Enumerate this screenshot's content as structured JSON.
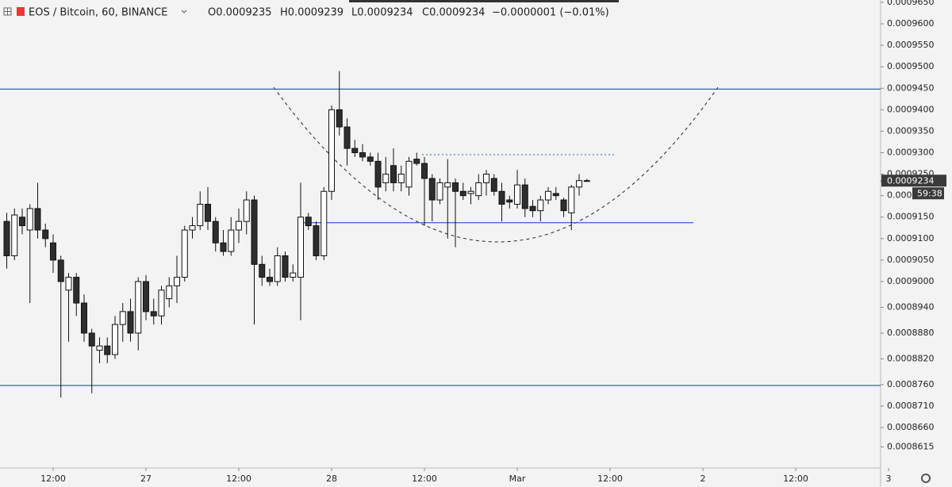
{
  "chart_data": {
    "type": "candlestick",
    "header": {
      "symbol": "EOS / Bitcoin, 60, BINANCE",
      "ohlc": [
        "O0.0009235",
        "H0.0009239",
        "L0.0009234",
        "C0.0009234"
      ],
      "change": "−0.0000001 (−0.01%)"
    },
    "open": [
      0.000914,
      0.000906,
      0.000915,
      0.000912,
      0.000917,
      0.000912,
      0.000909,
      0.000905,
      0.000898,
      0.000901,
      0.000895,
      0.000888,
      0.000884,
      0.000885,
      0.000883,
      0.00089,
      0.000893,
      0.000888,
      0.0009,
      0.000893,
      0.000892,
      0.000896,
      0.000899,
      0.000901,
      0.000912,
      0.000913,
      0.000918,
      0.000914,
      0.000909,
      0.000907,
      0.000912,
      0.000914,
      0.000919,
      0.000904,
      0.000901,
      0.0009,
      0.000906,
      0.000901,
      0.000901,
      0.000915,
      0.000913,
      0.000906,
      0.000921,
      0.00094,
      0.000936,
      0.000931,
      0.00093,
      0.000929,
      0.000928,
      0.000923,
      0.000927,
      0.000923,
      0.000922,
      0.0009285,
      0.0009275,
      0.000924,
      0.000919,
      0.000922,
      0.000923,
      0.000921,
      0.0009205,
      0.00092,
      0.000923,
      0.000924,
      0.000921,
      0.000919,
      0.000918,
      0.0009225,
      0.0009175,
      0.0009165,
      0.000919,
      0.0009205,
      0.000919,
      0.000916,
      0.000922,
      0.0009235
    ],
    "high": [
      0.000916,
      0.000917,
      0.000917,
      0.000918,
      0.000923,
      0.0009135,
      0.000911,
      0.000906,
      0.000902,
      0.000902,
      0.000897,
      0.000889,
      0.000887,
      0.000887,
      0.000892,
      0.000895,
      0.000896,
      0.000901,
      0.0009015,
      0.000896,
      0.000899,
      0.000901,
      0.000906,
      0.000913,
      0.000915,
      0.000921,
      0.000922,
      0.000915,
      0.000912,
      0.000915,
      0.000917,
      0.000921,
      0.00092,
      0.000906,
      0.000903,
      0.000908,
      0.000907,
      0.000904,
      0.000923,
      0.000916,
      0.000914,
      0.000922,
      0.000941,
      0.000949,
      0.000938,
      0.000933,
      0.000932,
      0.00093,
      0.00093,
      0.000929,
      0.000931,
      0.000927,
      0.000929,
      0.00093,
      0.000929,
      0.000925,
      0.000924,
      0.0009285,
      0.000924,
      0.000923,
      0.000922,
      0.000925,
      0.000926,
      0.000925,
      0.000923,
      0.00092,
      0.000926,
      0.000924,
      0.000919,
      0.00092,
      0.000922,
      0.000922,
      0.0009195,
      0.0009225,
      0.000925,
      0.0009239
    ],
    "low": [
      0.000903,
      0.000905,
      0.000911,
      0.000895,
      0.00091,
      0.000908,
      0.000902,
      0.000873,
      0.000886,
      0.000892,
      0.000886,
      0.000874,
      0.000881,
      0.000881,
      0.000882,
      0.000886,
      0.000886,
      0.000884,
      0.000891,
      0.00089,
      0.00089,
      0.000894,
      0.000895,
      0.0009,
      0.00091,
      0.000912,
      0.000912,
      0.000907,
      0.000906,
      0.000906,
      0.000909,
      0.000911,
      0.00089,
      0.000899,
      0.000899,
      0.000899,
      0.0009,
      0.0009,
      0.000891,
      0.000912,
      0.000905,
      0.000905,
      0.000919,
      0.000934,
      0.000927,
      0.000929,
      0.000928,
      0.000927,
      0.000919,
      0.000921,
      0.000921,
      0.000921,
      0.00092,
      0.000927,
      0.000913,
      0.000914,
      0.000918,
      0.00091,
      0.000908,
      0.000919,
      0.000918,
      0.000919,
      0.00092,
      0.00092,
      0.000914,
      0.000917,
      0.000917,
      0.000915,
      0.000915,
      0.000914,
      0.000918,
      0.000919,
      0.000915,
      0.000912,
      0.00092,
      0.0009234
    ],
    "close": [
      0.000906,
      0.0009155,
      0.000913,
      0.000917,
      0.000912,
      0.00091,
      0.000905,
      0.0009,
      0.000901,
      0.000895,
      0.000888,
      0.000885,
      0.000885,
      0.000883,
      0.00089,
      0.000893,
      0.000888,
      0.0009,
      0.000893,
      0.000892,
      0.000898,
      0.000899,
      0.000901,
      0.000912,
      0.000913,
      0.000918,
      0.000914,
      0.000909,
      0.000907,
      0.000912,
      0.000914,
      0.000919,
      0.000904,
      0.000901,
      0.0009,
      0.000906,
      0.000901,
      0.000902,
      0.000915,
      0.000913,
      0.000906,
      0.000921,
      0.00094,
      0.000936,
      0.000931,
      0.00093,
      0.000929,
      0.000928,
      0.000922,
      0.000925,
      0.000923,
      0.000925,
      0.000928,
      0.0009275,
      0.000924,
      0.000919,
      0.000923,
      0.000923,
      0.000921,
      0.00092,
      0.000921,
      0.000923,
      0.000925,
      0.000921,
      0.000918,
      0.0009185,
      0.0009225,
      0.000917,
      0.0009165,
      0.000919,
      0.000921,
      0.00092,
      0.0009165,
      0.000922,
      0.0009235,
      0.0009234
    ],
    "hlines": [
      0.0009448,
      0.0009137,
      0.0008758
    ],
    "xlim": [
      -0.87,
      112.97
    ],
    "xticks": [
      {
        "value": 6,
        "label": "12:00"
      },
      {
        "value": 18,
        "label": "27"
      },
      {
        "value": 30,
        "label": "12:00"
      },
      {
        "value": 42,
        "label": "28"
      },
      {
        "value": 54,
        "label": "12:00"
      },
      {
        "value": 66,
        "label": "Mar"
      },
      {
        "value": 78,
        "label": "12:00"
      },
      {
        "value": 90,
        "label": "2"
      },
      {
        "value": 102,
        "label": "12:00"
      },
      {
        "value": 114,
        "label": "3"
      }
    ],
    "ylim": [
      0.0008566,
      0.00096555
    ],
    "yticks": [
      {
        "value": 0.000965,
        "label": "0.0009650"
      },
      {
        "value": 0.00096,
        "label": "0.0009600"
      },
      {
        "value": 0.000955,
        "label": "0.0009550"
      },
      {
        "value": 0.00095,
        "label": "0.0009500"
      },
      {
        "value": 0.000945,
        "label": "0.0009450"
      },
      {
        "value": 0.00094,
        "label": "0.0009400"
      },
      {
        "value": 0.000935,
        "label": "0.0009350"
      },
      {
        "value": 0.00093,
        "label": "0.0009300"
      },
      {
        "value": 0.000925,
        "label": "0.0009250"
      },
      {
        "value": 0.00092,
        "label": "0.0009200"
      },
      {
        "value": 0.000915,
        "label": "0.0009150"
      },
      {
        "value": 0.00091,
        "label": "0.0009100"
      },
      {
        "value": 0.000905,
        "label": "0.0009050"
      },
      {
        "value": 0.0009,
        "label": "0.0009000"
      },
      {
        "value": 0.000894,
        "label": "0.0008940"
      },
      {
        "value": 0.000888,
        "label": "0.0008880"
      },
      {
        "value": 0.000882,
        "label": "0.0008820"
      },
      {
        "value": 0.000876,
        "label": "0.0008760"
      },
      {
        "value": 0.000871,
        "label": "0.0008710"
      },
      {
        "value": 0.000866,
        "label": "0.0008660"
      },
      {
        "value": 0.0008615,
        "label": "0.0008615"
      }
    ],
    "last_price_label": "0.0009234",
    "countdown": "59:38",
    "grid": false,
    "up_color": "#ffffff",
    "down_color": "#2e2e2e",
    "line_color": "#2f5fcc"
  }
}
